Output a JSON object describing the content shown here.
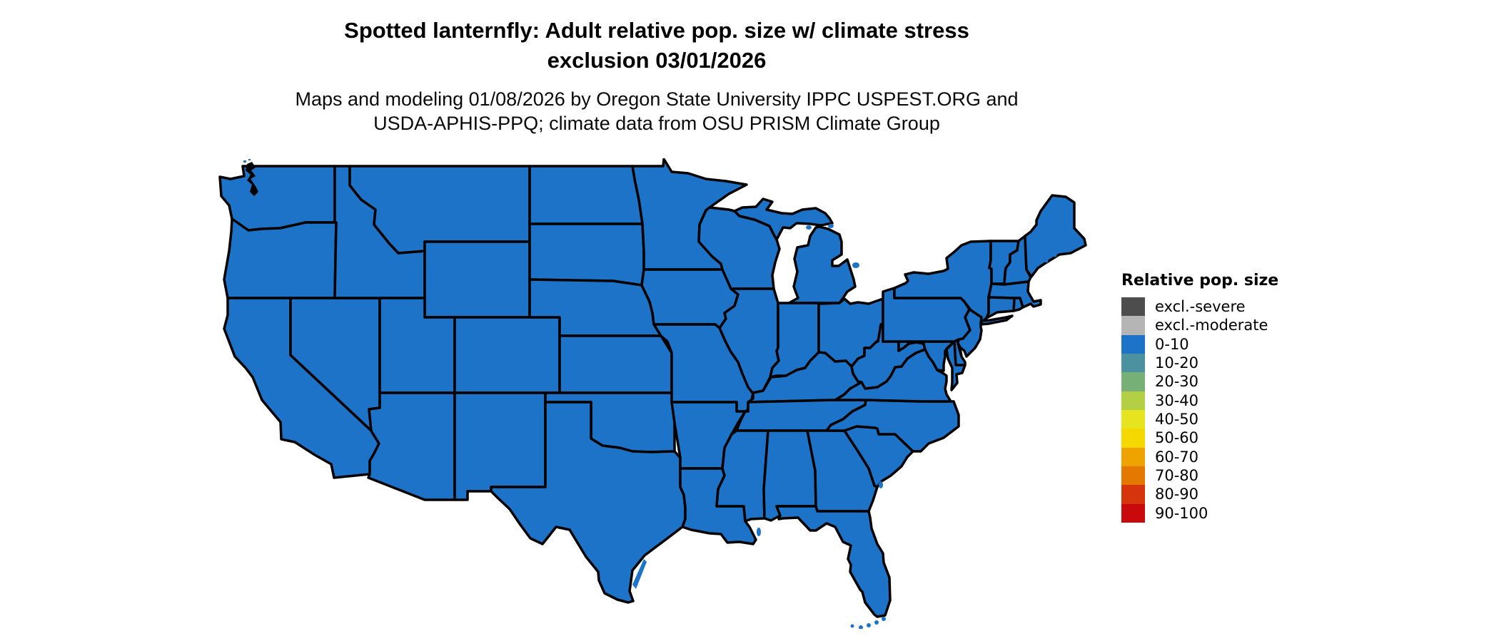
{
  "title": {
    "line1": "Spotted lanternfly: Adult relative pop. size w/ climate stress",
    "line2": "exclusion 03/01/2026"
  },
  "subtitle": {
    "line1": "Maps and modeling 01/08/2026 by Oregon State University IPPC USPEST.ORG and",
    "line2": "USDA-APHIS-PPQ; climate data from OSU PRISM Climate Group"
  },
  "map": {
    "region": "contiguous United States choropleth",
    "fill_hex": "#1C73C8",
    "border_hex": "#000000",
    "background_hex": "#FFFFFF",
    "all_states_class": "0-10"
  },
  "legend": {
    "title": "Relative pop. size",
    "items": [
      {
        "label": "excl.-severe",
        "color": "#4D4D4D"
      },
      {
        "label": "excl.-moderate",
        "color": "#B5B5B5"
      },
      {
        "label": "0-10",
        "color": "#1C73C8"
      },
      {
        "label": "10-20",
        "color": "#4C919F"
      },
      {
        "label": "20-30",
        "color": "#76B076"
      },
      {
        "label": "30-40",
        "color": "#B2CF45"
      },
      {
        "label": "40-50",
        "color": "#E6E41F"
      },
      {
        "label": "50-60",
        "color": "#F4D800"
      },
      {
        "label": "60-70",
        "color": "#EEA300"
      },
      {
        "label": "70-80",
        "color": "#E57800"
      },
      {
        "label": "80-90",
        "color": "#D5340D"
      },
      {
        "label": "90-100",
        "color": "#C90A0C"
      }
    ]
  }
}
